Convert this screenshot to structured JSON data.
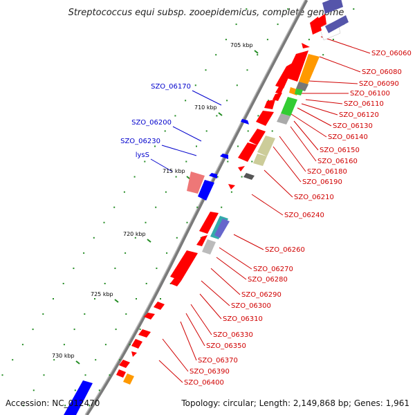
{
  "title": "Streptococcus equi subsp. zooepidemicus, complete genome",
  "footer": {
    "accession": "Accession: NC_012470",
    "topology": "Topology: circular; Length: 2,149,868 bp; Genes: 1,961"
  },
  "colors": {
    "forward_gene": "#ff0000",
    "reverse_gene": "#0000ff",
    "forward_label": "#d00000",
    "reverse_label": "#0000cc",
    "backbone": "#777777",
    "tick": "#228b22"
  },
  "ticks": [
    "705 kbp",
    "710 kbp",
    "715 kbp",
    "720 kbp",
    "725 kbp",
    "730 kbp"
  ],
  "forward_genes": [
    "SZO_06060",
    "SZO_06080",
    "SZO_06090",
    "SZO_06100",
    "SZO_06110",
    "SZO_06120",
    "SZO_06130",
    "SZO_06140",
    "SZO_06150",
    "SZO_06160",
    "SZO_06180",
    "SZO_06190",
    "SZO_06210",
    "SZO_06240",
    "SZO_06260",
    "SZO_06270",
    "SZO_06280",
    "SZO_06290",
    "SZO_06300",
    "SZO_06310",
    "SZO_06330",
    "SZO_06350",
    "SZO_06370",
    "SZO_06390",
    "SZO_06400"
  ],
  "reverse_genes": [
    "SZO_06170",
    "SZO_06200",
    "SZO_06230",
    "lysS"
  ]
}
